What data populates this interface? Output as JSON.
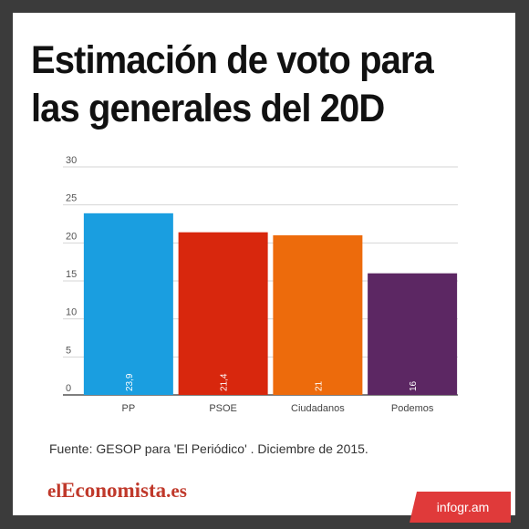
{
  "title": "Estimación de voto para las generales del 20D",
  "source": "Fuente:  GESOP para 'El Periódico' .  Diciembre de 2015.",
  "brand": {
    "part1": "el",
    "part2": "Economista",
    "part3": ".es"
  },
  "badge": "infogr.am",
  "chart_data": {
    "type": "bar",
    "categories": [
      "PP",
      "PSOE",
      "Ciudadanos",
      "Podemos"
    ],
    "values": [
      23.9,
      21.4,
      21,
      16
    ],
    "value_labels": [
      "23,9",
      "21,4",
      "21",
      "16"
    ],
    "colors": [
      "#1a9ee0",
      "#d8270d",
      "#ed6b0c",
      "#5c2763"
    ],
    "ylim": [
      0,
      30
    ],
    "yticks": [
      0,
      5,
      10,
      15,
      20,
      25,
      30
    ],
    "grid": true,
    "xlabel": "",
    "ylabel": ""
  }
}
